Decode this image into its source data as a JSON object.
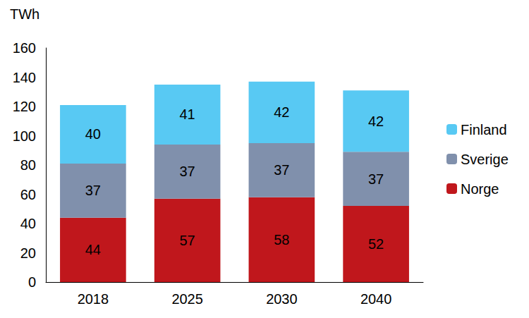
{
  "chart_data": {
    "type": "bar",
    "ylabel": "TWh",
    "categories": [
      "2018",
      "2025",
      "2030",
      "2040"
    ],
    "series": [
      {
        "name": "Norge",
        "color": "#c0171c",
        "values": [
          44,
          57,
          58,
          52
        ]
      },
      {
        "name": "Sverige",
        "color": "#8090ac",
        "values": [
          37,
          37,
          37,
          37
        ]
      },
      {
        "name": "Finland",
        "color": "#58c9f3",
        "values": [
          40,
          41,
          42,
          42
        ]
      }
    ],
    "ylim": [
      0,
      160
    ],
    "yticks": [
      0,
      20,
      40,
      60,
      80,
      100,
      120,
      140,
      160
    ],
    "stacked": true,
    "data_labels": true,
    "grid": false,
    "legend": "right"
  }
}
